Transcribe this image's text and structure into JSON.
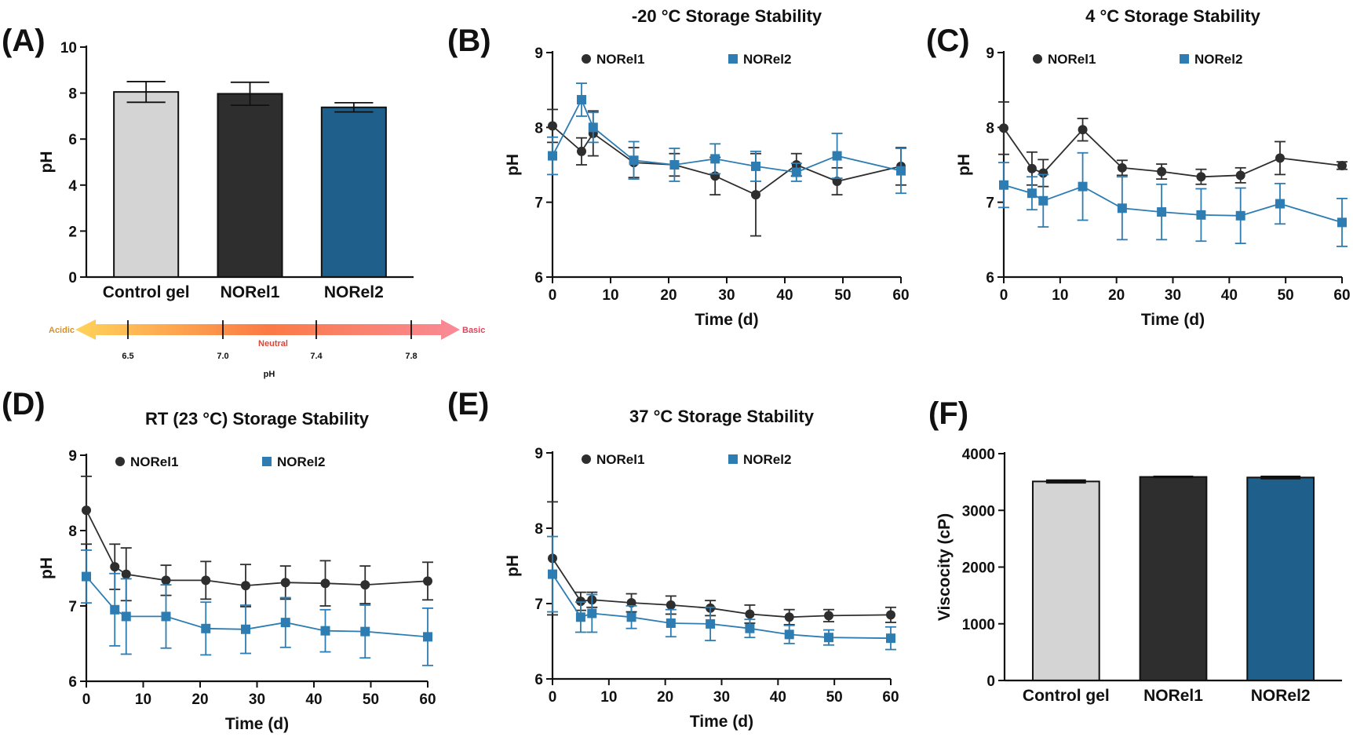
{
  "figure": {
    "colors": {
      "control": "#d4d4d4",
      "norel1": "#2e2e2e",
      "norel2": "#1f5f8b",
      "line1": "#2e2e2e",
      "line2": "#2d7db3"
    }
  },
  "chart_data": [
    {
      "panel": "(A)",
      "type": "bar",
      "title": "",
      "xlabel": "",
      "ylabel": "pH",
      "ylim": [
        0,
        10
      ],
      "yticks": [
        0,
        2,
        4,
        6,
        8,
        10
      ],
      "categories": [
        "Control gel",
        "NORel1",
        "NORel2"
      ],
      "values": [
        8.05,
        7.97,
        7.38
      ],
      "errors": [
        0.45,
        0.5,
        0.2
      ],
      "colors": [
        "#d4d4d4",
        "#2e2e2e",
        "#1f5f8b"
      ],
      "ph_scale": {
        "left_label": "Acidic",
        "right_label": "Basic",
        "center_label": "Neutral",
        "ticks": [
          "6.5",
          "7.0",
          "7.4",
          "7.8"
        ],
        "axis_label": "pH"
      }
    },
    {
      "panel": "(B)",
      "type": "line",
      "title": "-20 °C Storage Stability",
      "xlabel": "Time (d)",
      "ylabel": "pH",
      "xlim": [
        0,
        60
      ],
      "ylim": [
        6,
        9
      ],
      "xticks": [
        0,
        10,
        20,
        30,
        40,
        50,
        60
      ],
      "yticks": [
        6,
        7,
        8,
        9
      ],
      "legend": "top",
      "x": [
        0,
        5,
        7,
        14,
        21,
        28,
        35,
        42,
        49,
        60
      ],
      "series": [
        {
          "name": "NORel1",
          "values": [
            8.02,
            7.68,
            7.92,
            7.53,
            7.5,
            7.35,
            7.1,
            7.5,
            7.28,
            7.48
          ],
          "errors": [
            0.22,
            0.18,
            0.3,
            0.2,
            0.15,
            0.25,
            0.55,
            0.15,
            0.18,
            0.25
          ]
        },
        {
          "name": "NORel2",
          "values": [
            7.62,
            8.37,
            8.0,
            7.56,
            7.5,
            7.58,
            7.48,
            7.4,
            7.62,
            7.42
          ],
          "errors": [
            0.25,
            0.22,
            0.2,
            0.25,
            0.22,
            0.2,
            0.2,
            0.12,
            0.3,
            0.3
          ]
        }
      ]
    },
    {
      "panel": "(C)",
      "type": "line",
      "title": "4 °C Storage Stability",
      "xlabel": "Time (d)",
      "ylabel": "pH",
      "xlim": [
        0,
        60
      ],
      "ylim": [
        6,
        9
      ],
      "xticks": [
        0,
        10,
        20,
        30,
        40,
        50,
        60
      ],
      "yticks": [
        6,
        7,
        8,
        9
      ],
      "legend": "top",
      "x": [
        0,
        5,
        7,
        14,
        21,
        28,
        35,
        42,
        49,
        60
      ],
      "series": [
        {
          "name": "NORel1",
          "values": [
            7.99,
            7.45,
            7.39,
            7.97,
            7.46,
            7.41,
            7.34,
            7.36,
            7.59,
            7.49
          ],
          "errors": [
            0.35,
            0.22,
            0.18,
            0.15,
            0.1,
            0.1,
            0.1,
            0.1,
            0.22,
            0.05
          ]
        },
        {
          "name": "NORel2",
          "values": [
            7.23,
            7.12,
            7.02,
            7.21,
            6.92,
            6.87,
            6.83,
            6.82,
            6.98,
            6.73
          ],
          "errors": [
            0.3,
            0.22,
            0.35,
            0.45,
            0.42,
            0.37,
            0.35,
            0.37,
            0.27,
            0.32
          ]
        }
      ]
    },
    {
      "panel": "(D)",
      "type": "line",
      "title": "RT (23 °C) Storage Stability",
      "xlabel": "Time (d)",
      "ylabel": "pH",
      "xlim": [
        0,
        60
      ],
      "ylim": [
        6,
        9
      ],
      "xticks": [
        0,
        10,
        20,
        30,
        40,
        50,
        60
      ],
      "yticks": [
        6,
        7,
        8,
        9
      ],
      "legend": "top",
      "x": [
        0,
        5,
        7,
        14,
        21,
        28,
        35,
        42,
        49,
        60
      ],
      "series": [
        {
          "name": "NORel1",
          "values": [
            8.27,
            7.52,
            7.42,
            7.34,
            7.34,
            7.27,
            7.31,
            7.3,
            7.28,
            7.33
          ],
          "errors": [
            0.45,
            0.3,
            0.35,
            0.2,
            0.25,
            0.28,
            0.22,
            0.3,
            0.25,
            0.25
          ]
        },
        {
          "name": "NORel2",
          "values": [
            7.39,
            6.95,
            6.86,
            6.86,
            6.7,
            6.69,
            6.78,
            6.67,
            6.66,
            6.59
          ],
          "errors": [
            0.35,
            0.48,
            0.5,
            0.42,
            0.35,
            0.32,
            0.33,
            0.28,
            0.35,
            0.38
          ]
        }
      ]
    },
    {
      "panel": "(E)",
      "type": "line",
      "title": "37 °C Storage Stability",
      "xlabel": "Time (d)",
      "ylabel": "pH",
      "xlim": [
        0,
        60
      ],
      "ylim": [
        6,
        9
      ],
      "xticks": [
        0,
        10,
        20,
        30,
        40,
        50,
        60
      ],
      "yticks": [
        6,
        7,
        8,
        9
      ],
      "legend": "top",
      "x": [
        0,
        5,
        7,
        14,
        21,
        28,
        35,
        42,
        49,
        60
      ],
      "series": [
        {
          "name": "NORel1",
          "values": [
            7.6,
            7.03,
            7.05,
            7.01,
            6.98,
            6.94,
            6.86,
            6.82,
            6.84,
            6.85
          ],
          "errors": [
            0.75,
            0.12,
            0.1,
            0.12,
            0.12,
            0.1,
            0.12,
            0.1,
            0.08,
            0.1
          ]
        },
        {
          "name": "NORel2",
          "values": [
            7.39,
            6.82,
            6.87,
            6.82,
            6.74,
            6.73,
            6.67,
            6.59,
            6.55,
            6.54
          ],
          "errors": [
            0.5,
            0.2,
            0.25,
            0.15,
            0.18,
            0.22,
            0.12,
            0.12,
            0.1,
            0.15
          ]
        }
      ]
    },
    {
      "panel": "(F)",
      "type": "bar",
      "title": "",
      "xlabel": "",
      "ylabel": "Viscocity (cP)",
      "ylim": [
        0,
        4000
      ],
      "yticks": [
        0,
        1000,
        2000,
        3000,
        4000
      ],
      "categories": [
        "Control gel",
        "NORel1",
        "NORel2"
      ],
      "values": [
        3510,
        3590,
        3580
      ],
      "errors": [
        25,
        10,
        20
      ],
      "colors": [
        "#d4d4d4",
        "#2e2e2e",
        "#1f5f8b"
      ]
    }
  ]
}
